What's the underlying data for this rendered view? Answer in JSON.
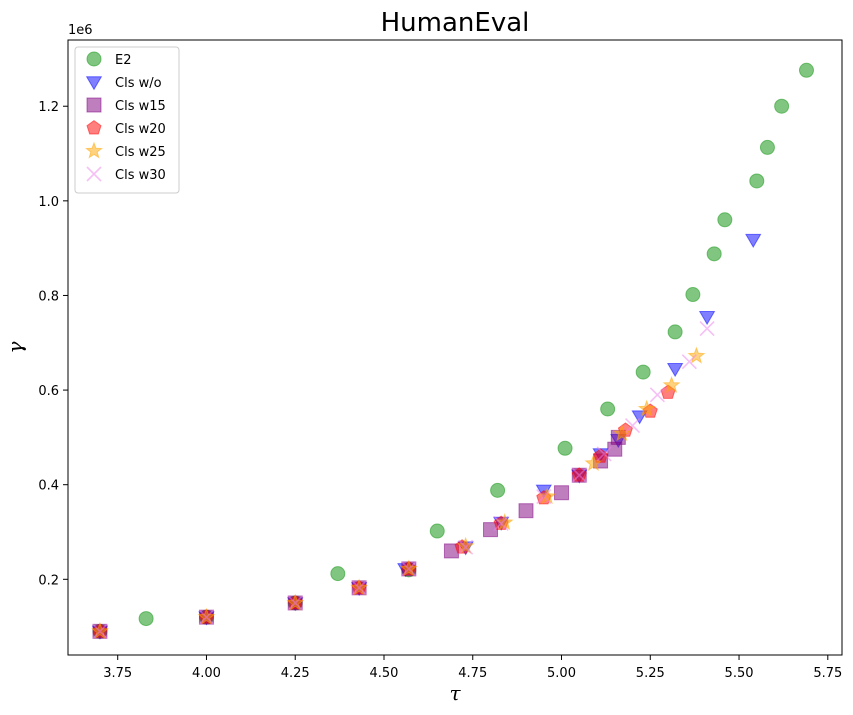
{
  "chart_data": {
    "type": "scatter",
    "title": "HumanEval",
    "xlabel": "τ",
    "ylabel": "γ",
    "xlim": [
      3.61,
      5.79
    ],
    "ylim": [
      40000,
      1340000
    ],
    "y_offset_label": "1e6",
    "y_scale": 1000000,
    "xticks": [
      3.75,
      4.0,
      4.25,
      4.5,
      4.75,
      5.0,
      5.25,
      5.5,
      5.75
    ],
    "xtick_labels": [
      "3.75",
      "4.00",
      "4.25",
      "4.50",
      "4.75",
      "5.00",
      "5.25",
      "5.50",
      "5.75"
    ],
    "yticks": [
      0.2,
      0.4,
      0.6,
      0.8,
      1.0,
      1.2
    ],
    "ytick_labels": [
      "0.2",
      "0.4",
      "0.6",
      "0.8",
      "1.0",
      "1.2"
    ],
    "legend_position": "upper-left",
    "series": [
      {
        "name": "E2",
        "marker": "circle",
        "color": "#2ca02c",
        "alpha": 0.6,
        "points": [
          [
            3.7,
            90000
          ],
          [
            3.83,
            117000
          ],
          [
            4.0,
            120000
          ],
          [
            4.25,
            150000
          ],
          [
            4.37,
            212000
          ],
          [
            4.57,
            220000
          ],
          [
            4.65,
            302000
          ],
          [
            4.82,
            388000
          ],
          [
            5.01,
            477000
          ],
          [
            5.13,
            560000
          ],
          [
            5.23,
            638000
          ],
          [
            5.32,
            723000
          ],
          [
            5.37,
            802000
          ],
          [
            5.43,
            888000
          ],
          [
            5.46,
            960000
          ],
          [
            5.55,
            1042000
          ],
          [
            5.58,
            1113000
          ],
          [
            5.62,
            1200000
          ],
          [
            5.69,
            1276000
          ]
        ]
      },
      {
        "name": "Cls w/o",
        "marker": "triangle-down",
        "color": "#0000ff",
        "alpha": 0.5,
        "points": [
          [
            3.7,
            90000
          ],
          [
            4.0,
            120000
          ],
          [
            4.25,
            150000
          ],
          [
            4.43,
            182000
          ],
          [
            4.56,
            222000
          ],
          [
            4.73,
            268000
          ],
          [
            4.83,
            320000
          ],
          [
            4.95,
            388000
          ],
          [
            5.05,
            420000
          ],
          [
            5.11,
            465000
          ],
          [
            5.16,
            495000
          ],
          [
            5.22,
            545000
          ],
          [
            5.32,
            645000
          ],
          [
            5.41,
            755000
          ],
          [
            5.54,
            918000
          ]
        ]
      },
      {
        "name": "Cls w15",
        "marker": "square",
        "color": "#800080",
        "alpha": 0.5,
        "points": [
          [
            3.7,
            90000
          ],
          [
            4.0,
            120000
          ],
          [
            4.25,
            150000
          ],
          [
            4.43,
            182000
          ],
          [
            4.57,
            222000
          ],
          [
            4.69,
            260000
          ],
          [
            4.8,
            305000
          ],
          [
            4.9,
            345000
          ],
          [
            5.0,
            383000
          ],
          [
            5.05,
            420000
          ],
          [
            5.11,
            450000
          ],
          [
            5.15,
            475000
          ],
          [
            5.16,
            500000
          ]
        ]
      },
      {
        "name": "Cls w20",
        "marker": "pentagon",
        "color": "#ff0000",
        "alpha": 0.5,
        "points": [
          [
            3.7,
            90000
          ],
          [
            4.0,
            120000
          ],
          [
            4.25,
            150000
          ],
          [
            4.43,
            182000
          ],
          [
            4.57,
            222000
          ],
          [
            4.72,
            268000
          ],
          [
            4.83,
            318000
          ],
          [
            4.95,
            372000
          ],
          [
            5.05,
            420000
          ],
          [
            5.11,
            460000
          ],
          [
            5.18,
            515000
          ],
          [
            5.25,
            555000
          ],
          [
            5.3,
            595000
          ]
        ]
      },
      {
        "name": "Cls w25",
        "marker": "star",
        "color": "#ffa500",
        "alpha": 0.5,
        "points": [
          [
            3.7,
            90000
          ],
          [
            4.0,
            120000
          ],
          [
            4.25,
            150000
          ],
          [
            4.43,
            182000
          ],
          [
            4.57,
            222000
          ],
          [
            4.73,
            270000
          ],
          [
            4.84,
            320000
          ],
          [
            4.96,
            375000
          ],
          [
            5.09,
            445000
          ],
          [
            5.17,
            508000
          ],
          [
            5.24,
            560000
          ],
          [
            5.31,
            610000
          ],
          [
            5.38,
            672000
          ]
        ]
      },
      {
        "name": "Cls w30",
        "marker": "x",
        "color": "#ee82ee",
        "alpha": 0.5,
        "points": [
          [
            3.7,
            90000
          ],
          [
            4.0,
            120000
          ],
          [
            4.25,
            150000
          ],
          [
            4.43,
            182000
          ],
          [
            4.57,
            222000
          ],
          [
            4.73,
            268000
          ],
          [
            4.83,
            318000
          ],
          [
            4.95,
            375000
          ],
          [
            5.05,
            420000
          ],
          [
            5.12,
            465000
          ],
          [
            5.2,
            525000
          ],
          [
            5.27,
            590000
          ],
          [
            5.36,
            660000
          ],
          [
            5.41,
            730000
          ]
        ]
      }
    ]
  }
}
